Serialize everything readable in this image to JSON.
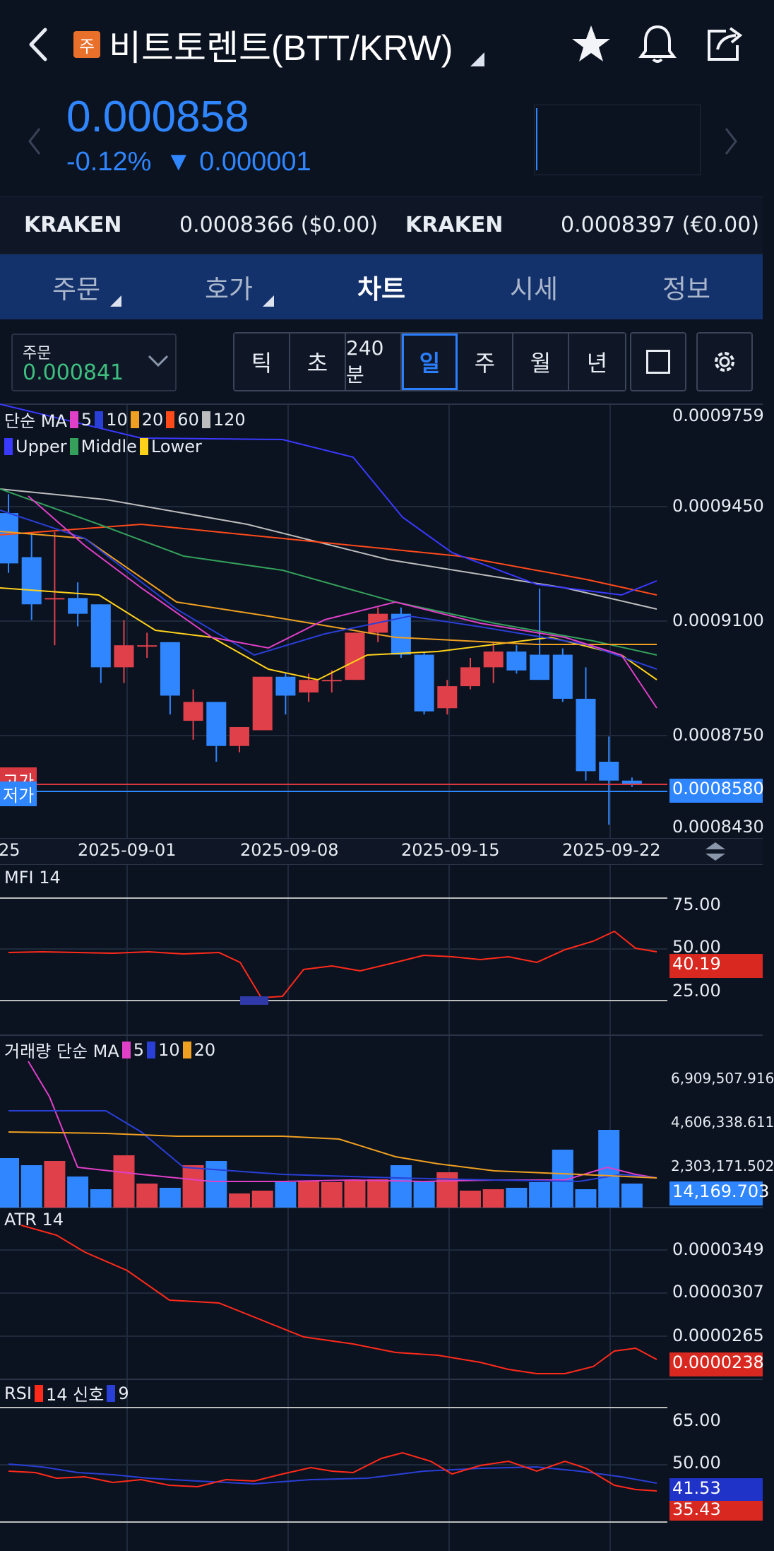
{
  "header": {
    "badge": "주",
    "title": "비트토렌트(BTT/KRW)"
  },
  "price": {
    "current": "0.000858",
    "change_pct": "-0.12%",
    "change_abs": "▼ 0.000001"
  },
  "exchanges": [
    {
      "name": "KRAKEN",
      "value": "0.0008366 ($0.00)"
    },
    {
      "name": "KRAKEN",
      "value": "0.0008397 (€0.00)"
    }
  ],
  "tabs": [
    {
      "label": "주문",
      "has_menu": true
    },
    {
      "label": "호가",
      "has_menu": true
    },
    {
      "label": "차트",
      "active": true
    },
    {
      "label": "시세"
    },
    {
      "label": "정보"
    }
  ],
  "order_box": {
    "label": "주문",
    "value": "0.000841"
  },
  "periods": [
    "틱",
    "초",
    "240분",
    "일",
    "주",
    "월",
    "년"
  ],
  "selected_period": "일",
  "main_chart": {
    "ma_legend": {
      "name": "단순 MA",
      "items": [
        {
          "label": "5",
          "color": "#e040c8"
        },
        {
          "label": "10",
          "color": "#2a3fd6"
        },
        {
          "label": "20",
          "color": "#f0a020"
        },
        {
          "label": "60",
          "color": "#ff4a1a"
        },
        {
          "label": "120",
          "color": "#bdbdbd"
        }
      ]
    },
    "bb_legend": [
      {
        "label": "Upper",
        "color": "#3a3aff"
      },
      {
        "label": "Middle",
        "color": "#34a05a"
      },
      {
        "label": "Lower",
        "color": "#ffd21a"
      }
    ],
    "y_ticks": [
      "0.0009759",
      "0.0009450",
      "0.0009100",
      "0.0008750",
      "0.0008430"
    ],
    "last_price_label": "0.0008580",
    "high_label": "고가",
    "low_label": "저가",
    "x_ticks": [
      "25",
      "2025-09-01",
      "2025-09-08",
      "2025-09-15",
      "2025-09-22"
    ]
  },
  "mfi": {
    "title": "MFI 14",
    "y_ticks": [
      "75.00",
      "50.00",
      "25.00"
    ],
    "last": "40.19"
  },
  "volume": {
    "title": "거래량 단순 MA",
    "legend": [
      {
        "label": "5",
        "color": "#e040c8"
      },
      {
        "label": "10",
        "color": "#2a3fd6"
      },
      {
        "label": "20",
        "color": "#f0a020"
      }
    ],
    "y_ticks": [
      "6,909,507.916",
      "4,606,338.611",
      "2,303,171.502"
    ],
    "last": "14,169.703"
  },
  "atr": {
    "title": "ATR 14",
    "y_ticks": [
      "0.0000349",
      "0.0000307",
      "0.0000265"
    ],
    "last": "0.0000238"
  },
  "rsi": {
    "title": "RSI",
    "legend": [
      {
        "label": "14 신호",
        "color": "#ff2a1a"
      },
      {
        "label": "9",
        "color": "#2a3fd6"
      }
    ],
    "y_ticks": [
      "65.00",
      "50.00"
    ],
    "last_signal": "41.53",
    "last_rsi": "35.43"
  },
  "chart_data": {
    "type": "candlestick",
    "x_ticks": [
      "2025-09-01",
      "2025-09-08",
      "2025-09-15",
      "2025-09-22"
    ],
    "ylim": [
      0.000843,
      0.0009759
    ],
    "candles": [
      {
        "o": 0.000944,
        "h": 0.00095,
        "c": 0.000928,
        "l": 0.000925
      },
      {
        "o": 0.00093,
        "h": 0.000938,
        "c": 0.000915,
        "l": 0.00091
      },
      {
        "o": 0.000917,
        "h": 0.000938,
        "c": 0.000917,
        "l": 0.000902
      },
      {
        "o": 0.000917,
        "h": 0.000922,
        "c": 0.000912,
        "l": 0.000908
      },
      {
        "o": 0.000915,
        "h": 0.000915,
        "c": 0.000895,
        "l": 0.00089
      },
      {
        "o": 0.000895,
        "h": 0.00091,
        "c": 0.000902,
        "l": 0.00089
      },
      {
        "o": 0.000902,
        "h": 0.000906,
        "c": 0.000902,
        "l": 0.000898
      },
      {
        "o": 0.000903,
        "h": 0.000903,
        "c": 0.000886,
        "l": 0.00088
      },
      {
        "o": 0.000878,
        "h": 0.000888,
        "c": 0.000884,
        "l": 0.000872
      },
      {
        "o": 0.000884,
        "h": 0.000884,
        "c": 0.00087,
        "l": 0.000865
      },
      {
        "o": 0.00087,
        "h": 0.000876,
        "c": 0.000876,
        "l": 0.000868
      },
      {
        "o": 0.000875,
        "h": 0.000892,
        "c": 0.000892,
        "l": 0.000875
      },
      {
        "o": 0.000892,
        "h": 0.000893,
        "c": 0.000886,
        "l": 0.00088
      },
      {
        "o": 0.000887,
        "h": 0.000893,
        "c": 0.000891,
        "l": 0.000884
      },
      {
        "o": 0.000891,
        "h": 0.000894,
        "c": 0.000891,
        "l": 0.000887
      },
      {
        "o": 0.000891,
        "h": 0.000906,
        "c": 0.000906,
        "l": 0.000891
      },
      {
        "o": 0.000906,
        "h": 0.000914,
        "c": 0.000912,
        "l": 0.000903
      },
      {
        "o": 0.000912,
        "h": 0.000914,
        "c": 0.000899,
        "l": 0.000898
      },
      {
        "o": 0.000899,
        "h": 0.0009,
        "c": 0.000881,
        "l": 0.00088
      },
      {
        "o": 0.000882,
        "h": 0.000891,
        "c": 0.000889,
        "l": 0.00088
      },
      {
        "o": 0.000889,
        "h": 0.000898,
        "c": 0.000895,
        "l": 0.000888
      },
      {
        "o": 0.000895,
        "h": 0.000903,
        "c": 0.0009,
        "l": 0.00089
      },
      {
        "o": 0.0009,
        "h": 0.000902,
        "c": 0.000894,
        "l": 0.000893
      },
      {
        "o": 0.000899,
        "h": 0.00092,
        "c": 0.000891,
        "l": 0.000891
      },
      {
        "o": 0.000899,
        "h": 0.000901,
        "c": 0.000885,
        "l": 0.000884
      },
      {
        "o": 0.000885,
        "h": 0.000895,
        "c": 0.000862,
        "l": 0.000859
      },
      {
        "o": 0.000865,
        "h": 0.000873,
        "c": 0.000859,
        "l": 0.000845
      },
      {
        "o": 0.000859,
        "h": 0.00086,
        "c": 0.000858,
        "l": 0.000857
      }
    ]
  }
}
